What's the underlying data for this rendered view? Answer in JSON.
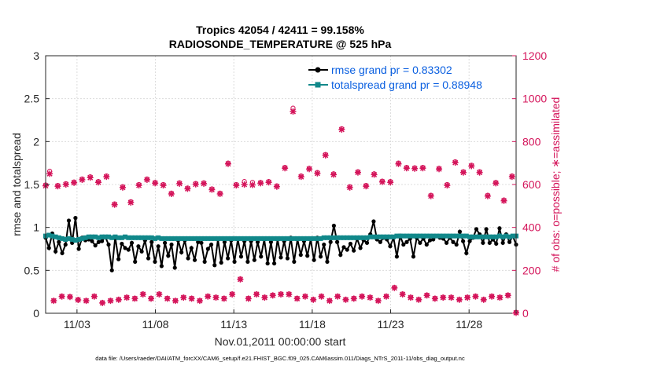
{
  "chart_data": {
    "type": "line",
    "title": "Tropics 42054 / 42411 = 99.158%",
    "subtitle": "RADIOSONDE_TEMPERATURE @ 525 hPa",
    "xlabel": "Nov.01,2011 00:00:00 start",
    "ylabel": "rmse and totalspread",
    "y2label": "# of obs: o=possible; ∗=assimilated",
    "xlim": [
      1.0,
      31.0
    ],
    "ylim": [
      0,
      3
    ],
    "y2lim": [
      0,
      1200
    ],
    "xticks": [
      3,
      8,
      13,
      18,
      23,
      28
    ],
    "xticklabels": [
      "11/03",
      "11/08",
      "11/13",
      "11/18",
      "11/23",
      "11/28"
    ],
    "yticklabels": [
      "0",
      "0.5",
      "1",
      "1.5",
      "2",
      "2.5",
      "3"
    ],
    "y2ticklabels": [
      "0",
      "200",
      "400",
      "600",
      "800",
      "1000",
      "1200"
    ],
    "grid": true,
    "legend_position": "top-right",
    "footer": "data file: /Users/raeder/DAI/ATM_forcXX/CAM6_setup/f.e21.FHIST_BGC.f09_025.CAM6assim.011/Diags_NTrS_2011-11/obs_diag_output.nc",
    "series": [
      {
        "name": "rmse grand pr = 0.83302",
        "axis": "left",
        "color": "#000000",
        "values": [
          0.88,
          0.76,
          0.93,
          0.72,
          0.83,
          0.7,
          0.8,
          1.08,
          0.82,
          1.11,
          0.75,
          0.88,
          0.85,
          0.86,
          0.84,
          0.79,
          0.83,
          0.84,
          0.89,
          0.8,
          0.5,
          0.89,
          0.63,
          0.81,
          0.76,
          0.74,
          0.82,
          0.6,
          0.78,
          0.72,
          0.85,
          0.64,
          0.83,
          0.6,
          0.78,
          0.55,
          0.82,
          0.67,
          0.8,
          0.53,
          0.85,
          0.71,
          0.85,
          0.64,
          0.76,
          0.62,
          0.83,
          0.82,
          0.6,
          0.75,
          0.8,
          0.56,
          0.86,
          0.59,
          0.83,
          0.64,
          0.85,
          0.6,
          0.86,
          0.66,
          0.84,
          0.6,
          0.84,
          0.62,
          0.83,
          0.66,
          0.86,
          0.58,
          0.83,
          0.58,
          0.86,
          0.65,
          0.84,
          0.64,
          0.88,
          0.6,
          0.86,
          0.68,
          0.84,
          0.67,
          0.86,
          0.62,
          0.88,
          0.66,
          0.8,
          0.6,
          0.83,
          1.02,
          0.83,
          0.68,
          0.77,
          0.74,
          0.81,
          0.73,
          0.87,
          0.76,
          0.85,
          0.82,
          0.92,
          1.07,
          0.86,
          0.83,
          0.88,
          0.86,
          0.78,
          0.88,
          0.66,
          0.9,
          0.8,
          0.83,
          0.87,
          0.66,
          0.88,
          0.82,
          0.87,
          0.8,
          0.85,
          0.86,
          0.9,
          0.88,
          0.87,
          0.82,
          0.88,
          0.83,
          0.8,
          0.95,
          0.84,
          0.7,
          0.84,
          0.88,
          0.98,
          0.92,
          0.82,
          0.98,
          0.82,
          0.86,
          0.81,
          0.99,
          0.82,
          0.92,
          0.83,
          0.9,
          0.8
        ]
      },
      {
        "name": "totalspread grand pr = 0.88948",
        "axis": "left",
        "color": "#11888a",
        "values": [
          0.9,
          0.91,
          0.9,
          0.89,
          0.88,
          0.87,
          0.86,
          0.87,
          0.86,
          0.85,
          0.86,
          0.87,
          0.88,
          0.89,
          0.89,
          0.89,
          0.88,
          0.89,
          0.89,
          0.89,
          0.88,
          0.89,
          0.88,
          0.88,
          0.89,
          0.88,
          0.88,
          0.88,
          0.88,
          0.88,
          0.88,
          0.88,
          0.88,
          0.87,
          0.88,
          0.87,
          0.87,
          0.87,
          0.87,
          0.87,
          0.87,
          0.87,
          0.87,
          0.87,
          0.87,
          0.87,
          0.87,
          0.87,
          0.87,
          0.87,
          0.87,
          0.87,
          0.87,
          0.87,
          0.87,
          0.87,
          0.87,
          0.87,
          0.87,
          0.87,
          0.87,
          0.87,
          0.87,
          0.87,
          0.87,
          0.87,
          0.87,
          0.87,
          0.87,
          0.87,
          0.87,
          0.87,
          0.87,
          0.87,
          0.87,
          0.87,
          0.87,
          0.87,
          0.87,
          0.87,
          0.87,
          0.87,
          0.87,
          0.87,
          0.88,
          0.88,
          0.88,
          0.88,
          0.88,
          0.88,
          0.88,
          0.88,
          0.88,
          0.88,
          0.88,
          0.88,
          0.88,
          0.88,
          0.89,
          0.89,
          0.89,
          0.89,
          0.89,
          0.89,
          0.89,
          0.89,
          0.9,
          0.9,
          0.9,
          0.9,
          0.9,
          0.9,
          0.9,
          0.9,
          0.9,
          0.9,
          0.9,
          0.9,
          0.9,
          0.9,
          0.9,
          0.9,
          0.9,
          0.9,
          0.9,
          0.9,
          0.9,
          0.9,
          0.89,
          0.89,
          0.89,
          0.89,
          0.89,
          0.89,
          0.89,
          0.89,
          0.89,
          0.9,
          0.89,
          0.9,
          0.89,
          0.9,
          0.9
        ]
      }
    ],
    "obs_counts": {
      "axis": "right",
      "color": "#d4145a",
      "possible": [
        598,
        662,
        60,
        596,
        80,
        604,
        78,
        612,
        64,
        626,
        60,
        636,
        80,
        614,
        50,
        640,
        60,
        510,
        65,
        590,
        75,
        520,
        70,
        600,
        90,
        626,
        70,
        610,
        90,
        600,
        70,
        560,
        60,
        608,
        75,
        584,
        70,
        605,
        60,
        608,
        80,
        580,
        75,
        560,
        70,
        700,
        90,
        600,
        160,
        614,
        70,
        610,
        90,
        610,
        75,
        614,
        85,
        594,
        90,
        680,
        90,
        956,
        70,
        640,
        80,
        676,
        65,
        656,
        80,
        740,
        60,
        650,
        80,
        860,
        65,
        590,
        70,
        660,
        80,
        596,
        75,
        650,
        60,
        616,
        80,
        614,
        120,
        700,
        90,
        680,
        75,
        678,
        65,
        680,
        85,
        550,
        70,
        676,
        75,
        600,
        75,
        706,
        65,
        660,
        75,
        690,
        80,
        660,
        65,
        550,
        80,
        610,
        75,
        528,
        85,
        640,
        4
      ],
      "assimilated": [
        594,
        650,
        58,
        592,
        78,
        600,
        76,
        608,
        62,
        622,
        58,
        632,
        78,
        610,
        48,
        636,
        58,
        506,
        63,
        586,
        73,
        516,
        68,
        596,
        88,
        622,
        68,
        606,
        88,
        596,
        68,
        556,
        58,
        604,
        73,
        580,
        68,
        601,
        58,
        604,
        78,
        576,
        73,
        556,
        68,
        696,
        88,
        596,
        158,
        600,
        68,
        598,
        88,
        606,
        73,
        610,
        83,
        590,
        88,
        676,
        88,
        940,
        68,
        636,
        78,
        672,
        63,
        652,
        78,
        736,
        58,
        646,
        78,
        856,
        63,
        586,
        68,
        656,
        78,
        592,
        73,
        646,
        58,
        612,
        78,
        610,
        118,
        696,
        88,
        676,
        73,
        674,
        63,
        676,
        83,
        546,
        68,
        672,
        73,
        596,
        73,
        702,
        63,
        656,
        73,
        686,
        78,
        656,
        63,
        546,
        78,
        606,
        73,
        524,
        83,
        636,
        2
      ]
    }
  }
}
